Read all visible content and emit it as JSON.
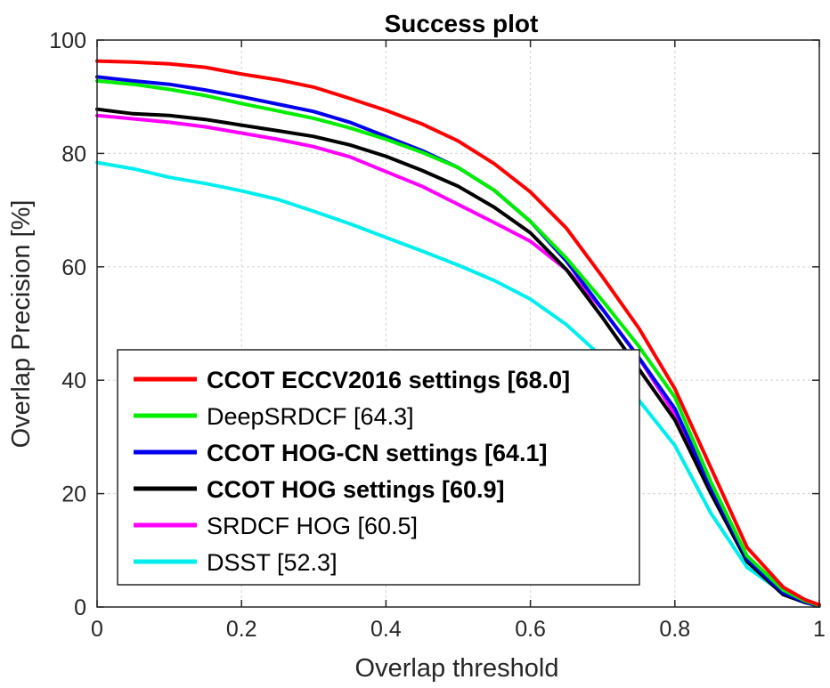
{
  "chart_data": {
    "type": "line",
    "title": "Success plot",
    "xlabel": "Overlap threshold",
    "ylabel": "Overlap Precision [%]",
    "xlim": [
      0,
      1
    ],
    "ylim": [
      0,
      100
    ],
    "xticks": [
      "0",
      "0.2",
      "0.4",
      "0.6",
      "0.8",
      "1"
    ],
    "yticks": [
      "0",
      "20",
      "40",
      "60",
      "80",
      "100"
    ],
    "grid": true,
    "legend_position": "bottom-left",
    "x": [
      0,
      0.05,
      0.1,
      0.15,
      0.2,
      0.25,
      0.3,
      0.35,
      0.4,
      0.45,
      0.5,
      0.55,
      0.6,
      0.65,
      0.7,
      0.75,
      0.8,
      0.85,
      0.9,
      0.95,
      0.98,
      1.0
    ],
    "series": [
      {
        "name": "CCOT ECCV2016 settings [68.0]",
        "bold": true,
        "color": "#ff0000",
        "values": [
          96.3,
          96.1,
          95.8,
          95.2,
          94.0,
          93.0,
          91.7,
          89.7,
          87.6,
          85.2,
          82.2,
          78.2,
          73.2,
          66.8,
          58.2,
          49.2,
          38.5,
          24.5,
          10.5,
          3.5,
          1.3,
          0.4
        ]
      },
      {
        "name": "DeepSRDCF [64.3]",
        "bold": false,
        "color": "#00ee00",
        "values": [
          92.8,
          92.2,
          91.3,
          90.2,
          88.8,
          87.5,
          86.2,
          84.5,
          82.5,
          80.2,
          77.5,
          73.5,
          68.0,
          61.5,
          54.0,
          46.0,
          37.0,
          22.0,
          9.0,
          3.0,
          1.1,
          0.3
        ]
      },
      {
        "name": "CCOT HOG-CN settings [64.1]",
        "bold": true,
        "color": "#0000ee",
        "values": [
          93.5,
          92.8,
          92.2,
          91.2,
          90.0,
          88.7,
          87.4,
          85.5,
          83.0,
          80.5,
          77.5,
          73.5,
          68.0,
          61.0,
          52.5,
          44.0,
          35.0,
          21.0,
          8.5,
          2.5,
          0.9,
          0.2
        ]
      },
      {
        "name": "CCOT HOG settings [60.9]",
        "bold": true,
        "color": "#000000",
        "values": [
          87.8,
          87.0,
          86.7,
          86.0,
          85.0,
          84.0,
          83.0,
          81.5,
          79.5,
          77.0,
          74.2,
          70.5,
          66.0,
          59.5,
          51.0,
          42.0,
          33.0,
          20.0,
          8.0,
          2.2,
          0.8,
          0.2
        ]
      },
      {
        "name": "SRDCF HOG [60.5]",
        "bold": false,
        "color": "#ff00ff",
        "values": [
          86.7,
          86.1,
          85.5,
          84.7,
          83.6,
          82.5,
          81.2,
          79.4,
          76.8,
          74.2,
          71.0,
          67.8,
          64.5,
          59.5,
          52.5,
          44.0,
          34.0,
          20.5,
          8.5,
          2.5,
          0.9,
          0.2
        ]
      },
      {
        "name": "DSST [52.3]",
        "bold": false,
        "color": "#00eeee",
        "values": [
          78.4,
          77.3,
          75.8,
          74.7,
          73.4,
          71.9,
          69.8,
          67.6,
          65.2,
          62.8,
          60.3,
          57.6,
          54.3,
          49.8,
          44.0,
          36.5,
          28.5,
          16.5,
          7.0,
          2.5,
          1.0,
          0.3
        ]
      }
    ]
  }
}
